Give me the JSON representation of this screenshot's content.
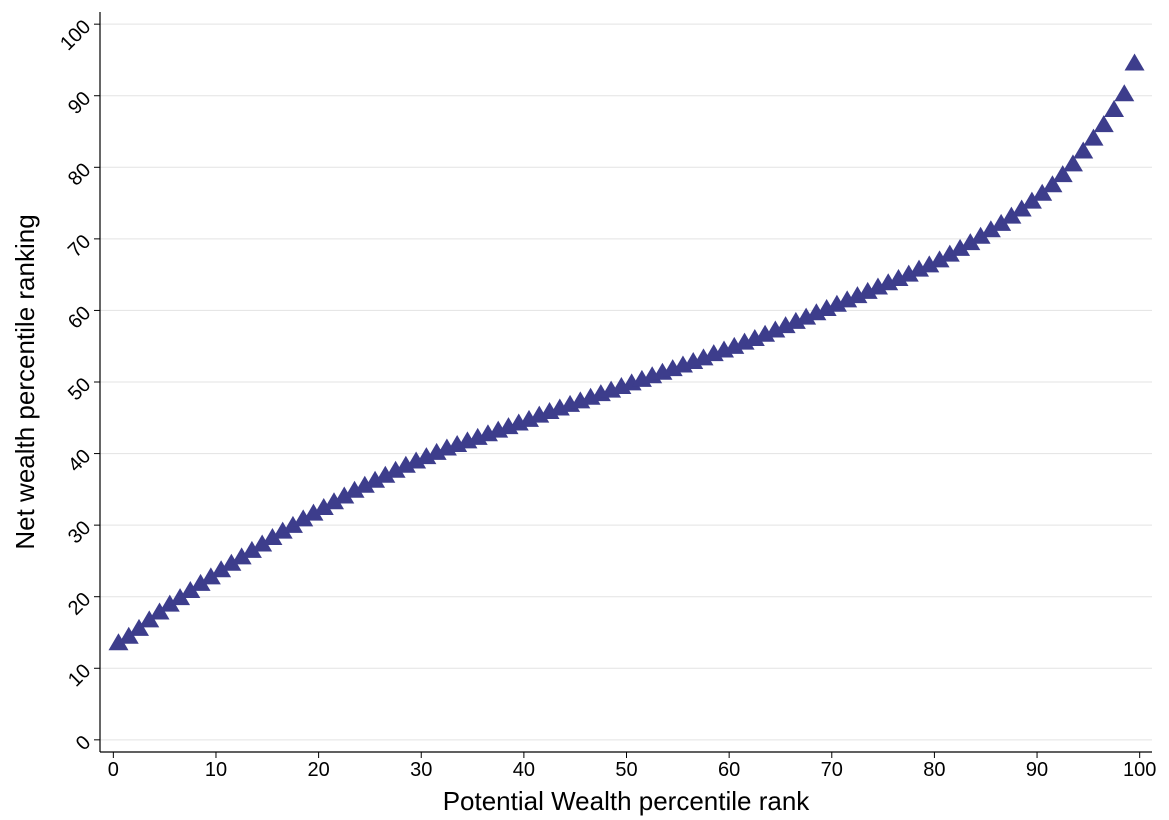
{
  "chart_data": {
    "type": "scatter",
    "x_label": "Potential Wealth percentile rank",
    "y_label": "Net wealth percentile ranking",
    "x": [
      0.5,
      1.5,
      2.5,
      3.5,
      4.5,
      5.5,
      6.5,
      7.5,
      8.5,
      9.5,
      10.5,
      11.5,
      12.5,
      13.5,
      14.5,
      15.5,
      16.5,
      17.5,
      18.5,
      19.5,
      20.5,
      21.5,
      22.5,
      23.5,
      24.5,
      25.5,
      26.5,
      27.5,
      28.5,
      29.5,
      30.5,
      31.5,
      32.5,
      33.5,
      34.5,
      35.5,
      36.5,
      37.5,
      38.5,
      39.5,
      40.5,
      41.5,
      42.5,
      43.5,
      44.5,
      45.5,
      46.5,
      47.5,
      48.5,
      49.5,
      50.5,
      51.5,
      52.5,
      53.5,
      54.5,
      55.5,
      56.5,
      57.5,
      58.5,
      59.5,
      60.5,
      61.5,
      62.5,
      63.5,
      64.5,
      65.5,
      66.5,
      67.5,
      68.5,
      69.5,
      70.5,
      71.5,
      72.5,
      73.5,
      74.5,
      75.5,
      76.5,
      77.5,
      78.5,
      79.5,
      80.5,
      81.5,
      82.5,
      83.5,
      84.5,
      85.5,
      86.5,
      87.5,
      88.5,
      89.5,
      90.5,
      91.5,
      92.5,
      93.5,
      94.5,
      95.5,
      96.5,
      97.5,
      98.5,
      99.5
    ],
    "values": [
      13.5,
      14.4,
      15.5,
      16.7,
      17.8,
      18.9,
      19.8,
      20.8,
      21.8,
      22.7,
      23.7,
      24.6,
      25.5,
      26.4,
      27.3,
      28.2,
      29.1,
      29.9,
      30.8,
      31.6,
      32.4,
      33.2,
      34,
      34.8,
      35.5,
      36.2,
      36.9,
      37.6,
      38.3,
      38.9,
      39.5,
      40.1,
      40.7,
      41.2,
      41.7,
      42.2,
      42.7,
      43.2,
      43.7,
      44.2,
      44.7,
      45.3,
      45.8,
      46.3,
      46.8,
      47.3,
      47.8,
      48.3,
      48.8,
      49.3,
      49.8,
      50.3,
      50.8,
      51.3,
      51.8,
      52.3,
      52.8,
      53.3,
      53.9,
      54.4,
      54.9,
      55.5,
      56,
      56.6,
      57.2,
      57.8,
      58.4,
      59,
      59.6,
      60.2,
      60.8,
      61.4,
      62,
      62.6,
      63.2,
      63.8,
      64.4,
      65,
      65.7,
      66.3,
      67,
      67.8,
      68.6,
      69.4,
      70.3,
      71.2,
      72.1,
      73.1,
      74.1,
      75.2,
      76.3,
      77.5,
      78.9,
      80.4,
      82.2,
      84,
      85.9,
      88,
      90.2,
      94.5
    ],
    "color": "#3d3d8c",
    "xlim": [
      -1.3,
      101.2
    ],
    "ylim": [
      -1.7,
      101.7
    ],
    "xticks": [
      0,
      10,
      20,
      30,
      40,
      50,
      60,
      70,
      80,
      90,
      100
    ],
    "yticks": [
      0,
      10,
      20,
      30,
      40,
      50,
      60,
      70,
      80,
      90,
      100
    ],
    "grid": true
  }
}
